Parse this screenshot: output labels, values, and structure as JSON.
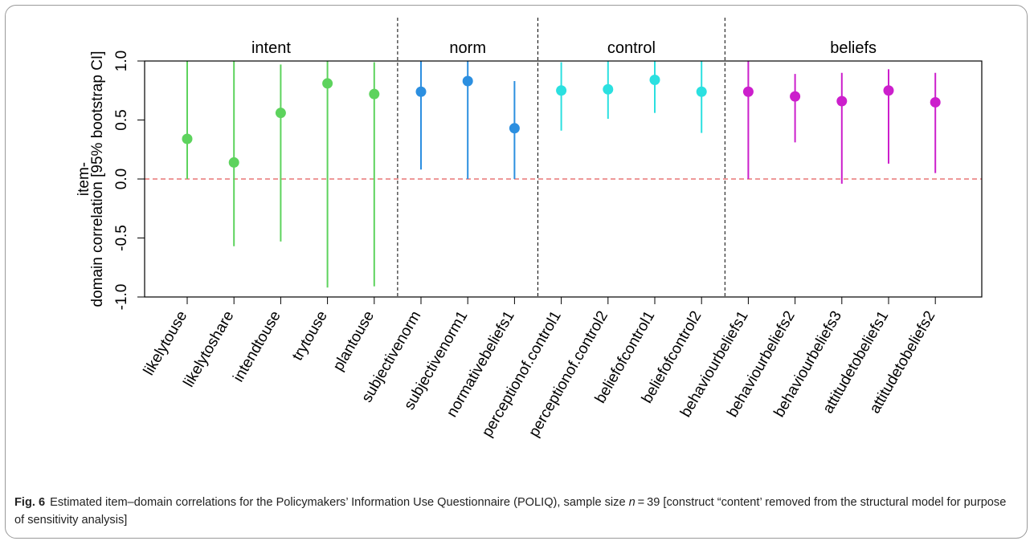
{
  "chart_data": {
    "type": "scatter",
    "ylabel_line1": "item-",
    "ylabel_line2": "domain correlation [95% bootstrap CI]",
    "ylim": [
      -1.0,
      1.0
    ],
    "yticks": [
      "-1.0",
      "-0.5",
      "0.0",
      "0.5",
      "1.0"
    ],
    "ytick_values": [
      -1.0,
      -0.5,
      0.0,
      0.5,
      1.0
    ],
    "reference_line": 0.0,
    "groups": [
      {
        "name": "intent",
        "color": "#5dd35d",
        "start": 0,
        "end": 4
      },
      {
        "name": "norm",
        "color": "#2c8fe0",
        "start": 5,
        "end": 7
      },
      {
        "name": "control",
        "color": "#2be0e0",
        "start": 8,
        "end": 11
      },
      {
        "name": "beliefs",
        "color": "#cc1fcc",
        "start": 12,
        "end": 16
      }
    ],
    "items": [
      {
        "label": "likelytouse",
        "value": 0.34,
        "lower": 0.0,
        "upper": 1.0,
        "group": 0
      },
      {
        "label": "likelytoshare",
        "value": 0.14,
        "lower": -0.57,
        "upper": 1.0,
        "group": 0
      },
      {
        "label": "intendtouse",
        "value": 0.56,
        "lower": -0.53,
        "upper": 0.97,
        "group": 0
      },
      {
        "label": "trytouse",
        "value": 0.81,
        "lower": -0.92,
        "upper": 1.0,
        "group": 0
      },
      {
        "label": "plantouse",
        "value": 0.72,
        "lower": -0.91,
        "upper": 0.99,
        "group": 0
      },
      {
        "label": "subjectivenorm",
        "value": 0.74,
        "lower": 0.08,
        "upper": 1.0,
        "group": 1
      },
      {
        "label": "subjectivenorm1",
        "value": 0.83,
        "lower": 0.0,
        "upper": 1.0,
        "group": 1
      },
      {
        "label": "normativebeliefs1",
        "value": 0.43,
        "lower": 0.0,
        "upper": 0.83,
        "group": 1
      },
      {
        "label": "perceptionof.control1",
        "value": 0.75,
        "lower": 0.41,
        "upper": 0.99,
        "group": 2
      },
      {
        "label": "perceptionof.control2",
        "value": 0.76,
        "lower": 0.51,
        "upper": 1.0,
        "group": 2
      },
      {
        "label": "beliefofcontrol1",
        "value": 0.84,
        "lower": 0.56,
        "upper": 1.0,
        "group": 2
      },
      {
        "label": "beliefofcontrol2",
        "value": 0.74,
        "lower": 0.39,
        "upper": 1.0,
        "group": 2
      },
      {
        "label": "behaviourbeliefs1",
        "value": 0.74,
        "lower": 0.0,
        "upper": 1.0,
        "group": 3
      },
      {
        "label": "behaviourbeliefs2",
        "value": 0.7,
        "lower": 0.31,
        "upper": 0.89,
        "group": 3
      },
      {
        "label": "behaviourbeliefs3",
        "value": 0.66,
        "lower": -0.04,
        "upper": 0.9,
        "group": 3
      },
      {
        "label": "attitudetobeliefs1",
        "value": 0.75,
        "lower": 0.13,
        "upper": 0.93,
        "group": 3
      },
      {
        "label": "attitudetobeliefs2",
        "value": 0.65,
        "lower": 0.05,
        "upper": 0.9,
        "group": 3
      }
    ],
    "grid": false,
    "legend": "none"
  },
  "caption": {
    "label": "Fig. 6",
    "text_before_n": "Estimated item–domain correlations for the Policymakers’ Information Use Questionnaire (POLIQ), sample size ",
    "n_symbol": "n",
    "text_after_n": " = 39 [construct “content’ removed from the structural model for purpose of sensitivity analysis]"
  }
}
